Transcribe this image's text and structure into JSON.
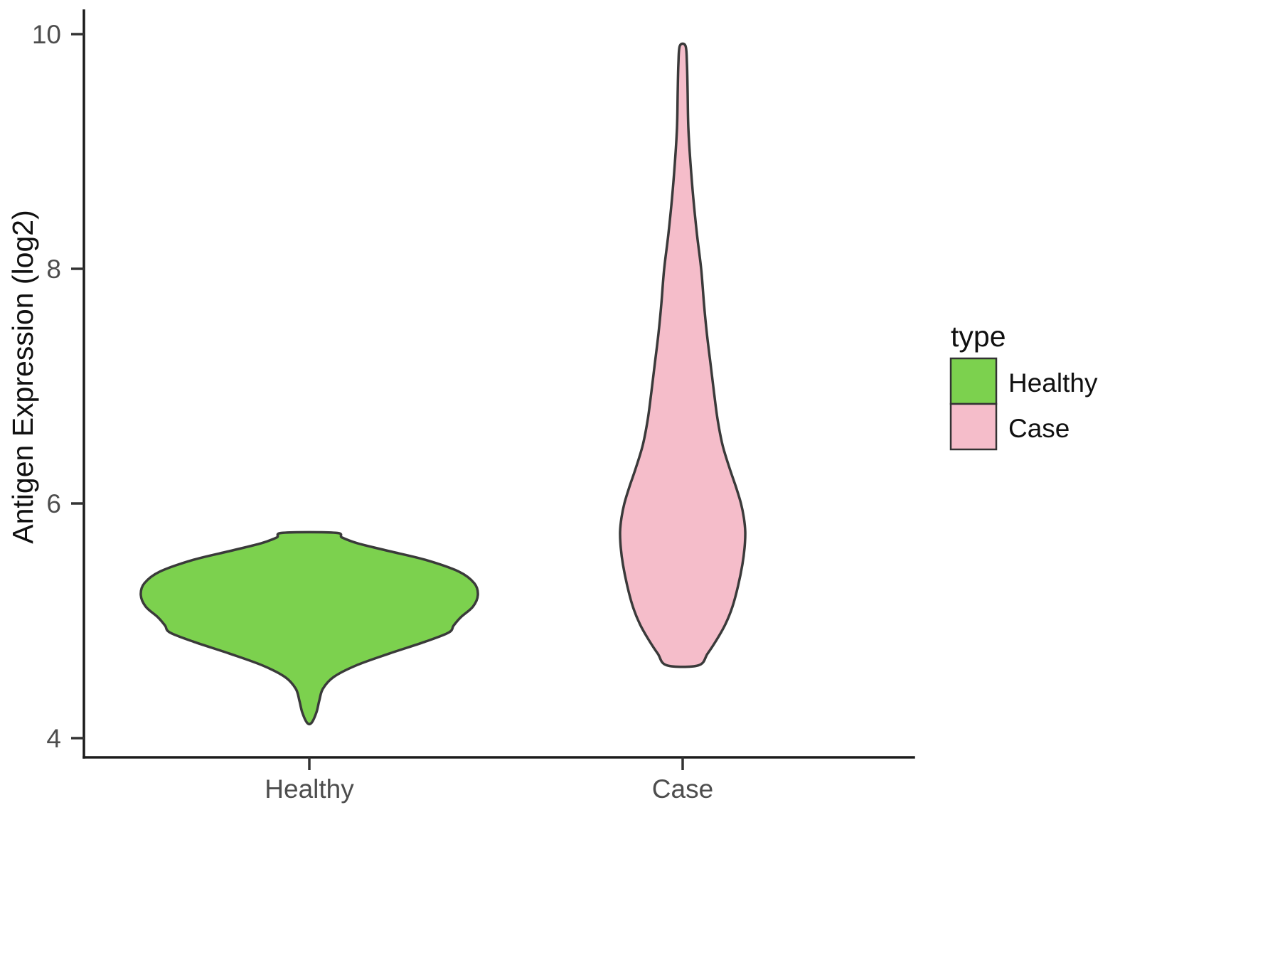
{
  "chart_data": {
    "type": "violin",
    "title": "",
    "xlabel": "",
    "ylabel": "Antigen Expression (log2)",
    "categories": [
      "Healthy",
      "Case"
    ],
    "y_ticks": [
      4,
      6,
      8,
      10
    ],
    "ylim": [
      3.9,
      10.1
    ],
    "grid": "off",
    "legend": {
      "title": "type",
      "position": "right",
      "entries": [
        {
          "label": "Healthy",
          "color": "#7CD14E"
        },
        {
          "label": "Case",
          "color": "#F5BDCA"
        }
      ]
    },
    "series": [
      {
        "name": "Healthy",
        "category": "Healthy",
        "fill": "#7CD14E",
        "outline": "#3a3a3a",
        "y_min": 4.13,
        "y_max": 5.75,
        "peak_density_at": 5.22,
        "flat_bottom": false,
        "profile": [
          [
            4.13,
            3
          ],
          [
            4.22,
            10
          ],
          [
            4.32,
            14
          ],
          [
            4.42,
            19
          ],
          [
            4.52,
            34
          ],
          [
            4.62,
            66
          ],
          [
            4.72,
            112
          ],
          [
            4.82,
            162
          ],
          [
            4.9,
            196
          ],
          [
            4.96,
            203
          ],
          [
            5.03,
            213
          ],
          [
            5.12,
            230
          ],
          [
            5.22,
            237
          ],
          [
            5.32,
            232
          ],
          [
            5.42,
            210
          ],
          [
            5.52,
            163
          ],
          [
            5.6,
            108
          ],
          [
            5.66,
            68
          ],
          [
            5.71,
            46
          ],
          [
            5.75,
            37
          ]
        ]
      },
      {
        "name": "Case",
        "category": "Case",
        "fill": "#F5BDCA",
        "outline": "#3a3a3a",
        "y_min": 4.62,
        "y_max": 9.9,
        "peak_density_at": 5.76,
        "flat_bottom": true,
        "profile": [
          [
            4.62,
            22
          ],
          [
            4.72,
            35
          ],
          [
            4.84,
            48
          ],
          [
            4.97,
            60
          ],
          [
            5.12,
            70
          ],
          [
            5.3,
            78
          ],
          [
            5.48,
            84
          ],
          [
            5.62,
            87
          ],
          [
            5.76,
            88
          ],
          [
            5.88,
            86
          ],
          [
            6.0,
            82
          ],
          [
            6.14,
            75
          ],
          [
            6.3,
            66
          ],
          [
            6.5,
            56
          ],
          [
            6.72,
            49
          ],
          [
            6.95,
            44
          ],
          [
            7.2,
            39
          ],
          [
            7.45,
            34
          ],
          [
            7.7,
            30
          ],
          [
            8.0,
            26
          ],
          [
            8.3,
            20
          ],
          [
            8.6,
            15
          ],
          [
            8.9,
            11
          ],
          [
            9.2,
            8
          ],
          [
            9.5,
            7
          ],
          [
            9.75,
            6
          ],
          [
            9.9,
            4
          ]
        ]
      }
    ]
  }
}
